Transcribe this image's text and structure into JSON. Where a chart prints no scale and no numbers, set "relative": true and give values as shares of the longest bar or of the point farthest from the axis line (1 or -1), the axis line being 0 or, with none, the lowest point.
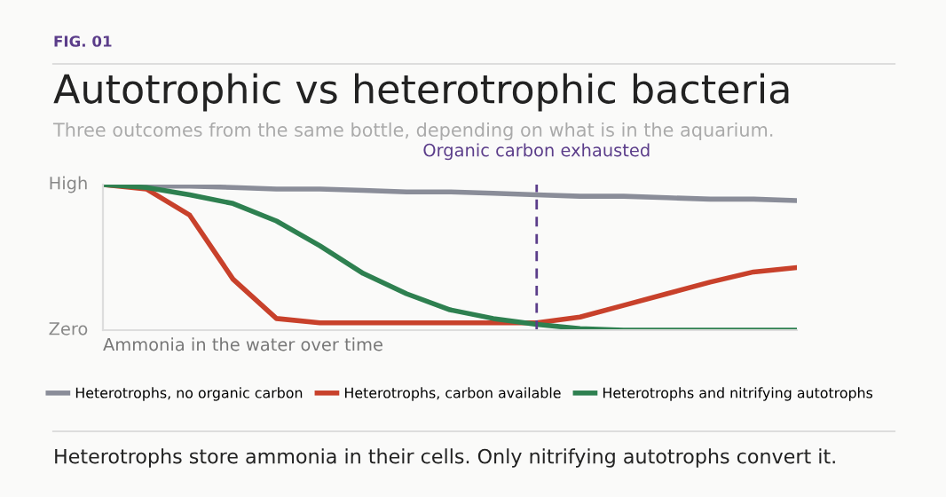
{
  "chart_data": {
    "type": "line",
    "title": "Autotrophic vs heterotrophic bacteria",
    "subtitle": "Three outcomes from the same bottle, depending on what is in the aquarium.",
    "xlabel": "Ammonia in the water over time",
    "relative": true,
    "categories": [
      null,
      null,
      null,
      null,
      null,
      null,
      null,
      null,
      null,
      null,
      null,
      null,
      null,
      null,
      null,
      null,
      null
    ],
    "tick_labels": false,
    "legend": "bottom",
    "line_style": "solid",
    "marker": "none",
    "series": [
      {
        "name": "Heterotrophs, no organic carbon",
        "color": "#8a8d99",
        "values": [
          1.0,
          0.99,
          0.99,
          0.98,
          0.97,
          0.97,
          0.96,
          0.95,
          0.95,
          0.94,
          0.93,
          0.92,
          0.92,
          0.91,
          0.9,
          0.9,
          0.89
        ]
      },
      {
        "name": "Heterotrophs, carbon available",
        "color": "#c8412b",
        "values": [
          1.0,
          0.97,
          0.79,
          0.35,
          0.08,
          0.05,
          0.05,
          0.05,
          0.05,
          0.05,
          0.05,
          0.09,
          0.17,
          0.25,
          0.33,
          0.4,
          0.43
        ]
      },
      {
        "name": "Heterotrophs and nitrifying autotrophs",
        "color": "#2e8050",
        "values": [
          1.0,
          0.98,
          0.93,
          0.87,
          0.75,
          0.58,
          0.39,
          0.25,
          0.14,
          0.08,
          0.04,
          0.01,
          0,
          0,
          0,
          0,
          0
        ]
      }
    ],
    "annotations": [
      "FIG. 01",
      "High",
      "Zero",
      "Organic carbon exhausted",
      "Heterotrophs store ammonia in their cells. Only nitrifying autotrophs convert it."
    ]
  }
}
